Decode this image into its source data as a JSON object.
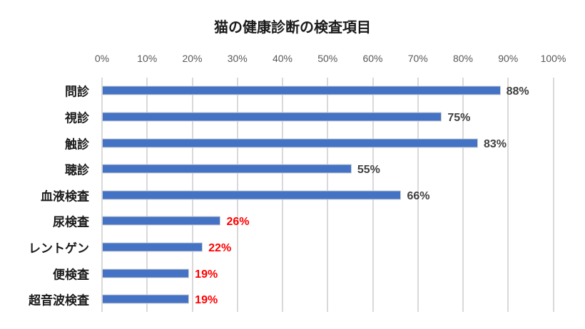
{
  "chart_data": {
    "type": "bar",
    "orientation": "horizontal",
    "title": "猫の健康診断の検査項目",
    "xlabel": "",
    "ylabel": "",
    "xlim": [
      0,
      100
    ],
    "x_ticks": [
      "0%",
      "10%",
      "20%",
      "30%",
      "40%",
      "50%",
      "60%",
      "70%",
      "80%",
      "90%",
      "100%"
    ],
    "x_axis_position": "top",
    "grid": true,
    "legend": null,
    "categories": [
      "問診",
      "視診",
      "触診",
      "聴診",
      "血液検査",
      "尿検査",
      "レントゲン",
      "便検査",
      "超音波検査"
    ],
    "values": [
      88,
      75,
      83,
      55,
      66,
      26,
      22,
      19,
      19
    ],
    "data_labels": [
      "88%",
      "75%",
      "83%",
      "55%",
      "66%",
      "26%",
      "22%",
      "19%",
      "19%"
    ],
    "label_colors": [
      "#404040",
      "#404040",
      "#404040",
      "#404040",
      "#404040",
      "#ff0000",
      "#ff0000",
      "#ff0000",
      "#ff0000"
    ],
    "bar_color": "#4472c4"
  }
}
